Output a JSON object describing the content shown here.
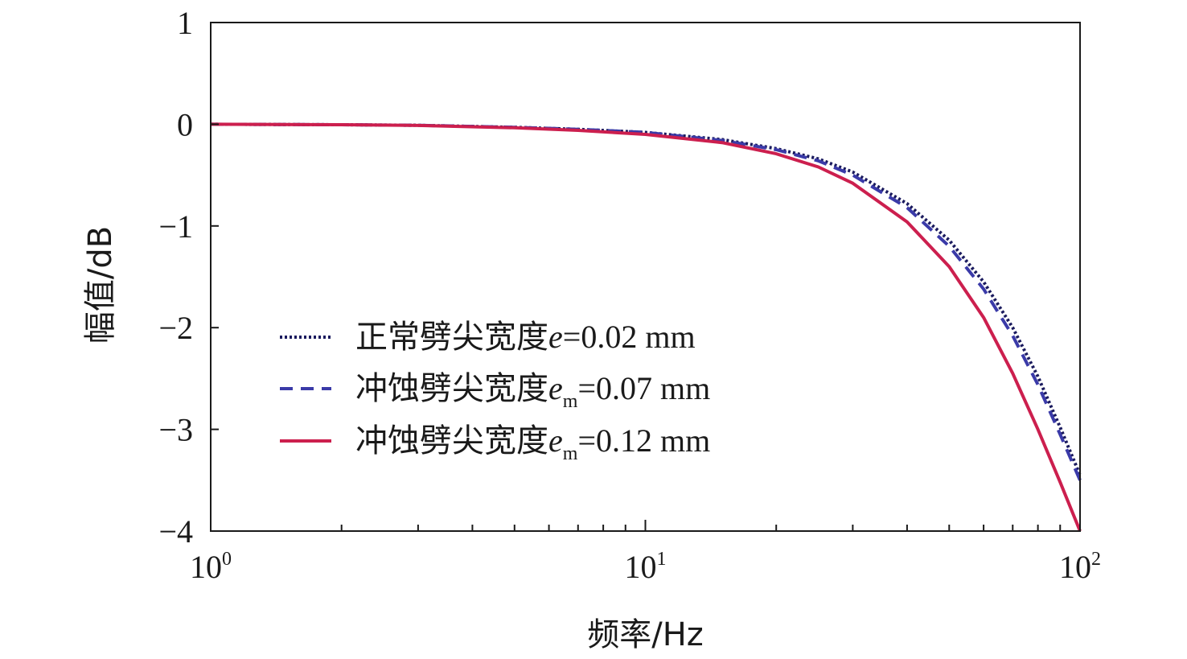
{
  "chart_data": {
    "type": "line",
    "xlabel": "频率/Hz",
    "ylabel": "幅值/dB",
    "xscale": "log",
    "xlim": [
      1,
      100
    ],
    "ylim": [
      -4,
      1
    ],
    "yticks": [
      1,
      0,
      -1,
      -2,
      -3,
      -4
    ],
    "xticks": [
      {
        "value": 1,
        "base": "10",
        "exp": "0"
      },
      {
        "value": 10,
        "base": "10",
        "exp": "1"
      },
      {
        "value": 100,
        "base": "10",
        "exp": "2"
      }
    ],
    "grid": false,
    "legend_position": "lower-left",
    "series": [
      {
        "name": "正常劈尖宽度e=0.02 mm",
        "legend_main": "正常劈尖宽度",
        "legend_var": "e",
        "legend_sub": "",
        "legend_tail": "=0.02 mm",
        "color": "#1a1a5e",
        "style": "dotted",
        "x": [
          1,
          2,
          3,
          5,
          7,
          10,
          15,
          20,
          25,
          30,
          40,
          50,
          60,
          70,
          80,
          90,
          100
        ],
        "y": [
          0,
          -0.005,
          -0.01,
          -0.03,
          -0.05,
          -0.08,
          -0.15,
          -0.24,
          -0.34,
          -0.47,
          -0.78,
          -1.14,
          -1.55,
          -2.0,
          -2.48,
          -2.98,
          -3.45
        ]
      },
      {
        "name": "冲蚀劈尖宽度em=0.07 mm",
        "legend_main": "冲蚀劈尖宽度",
        "legend_var": "e",
        "legend_sub": "m",
        "legend_tail": "=0.07 mm",
        "color": "#3a3aa8",
        "style": "dashed",
        "x": [
          1,
          2,
          3,
          5,
          7,
          10,
          15,
          20,
          25,
          30,
          40,
          50,
          60,
          70,
          80,
          90,
          100
        ],
        "y": [
          0,
          -0.005,
          -0.01,
          -0.03,
          -0.05,
          -0.08,
          -0.16,
          -0.25,
          -0.36,
          -0.5,
          -0.82,
          -1.2,
          -1.62,
          -2.08,
          -2.56,
          -3.05,
          -3.5
        ]
      },
      {
        "name": "冲蚀劈尖宽度em=0.12 mm",
        "legend_main": "冲蚀劈尖宽度",
        "legend_var": "e",
        "legend_sub": "m",
        "legend_tail": "=0.12 mm",
        "color": "#cc1f4e",
        "style": "solid",
        "x": [
          1,
          2,
          3,
          5,
          7,
          10,
          15,
          20,
          25,
          30,
          40,
          50,
          60,
          70,
          80,
          90,
          100
        ],
        "y": [
          0,
          -0.005,
          -0.012,
          -0.035,
          -0.06,
          -0.1,
          -0.18,
          -0.29,
          -0.42,
          -0.58,
          -0.96,
          -1.4,
          -1.9,
          -2.45,
          -3.0,
          -3.52,
          -4.0
        ]
      }
    ]
  }
}
